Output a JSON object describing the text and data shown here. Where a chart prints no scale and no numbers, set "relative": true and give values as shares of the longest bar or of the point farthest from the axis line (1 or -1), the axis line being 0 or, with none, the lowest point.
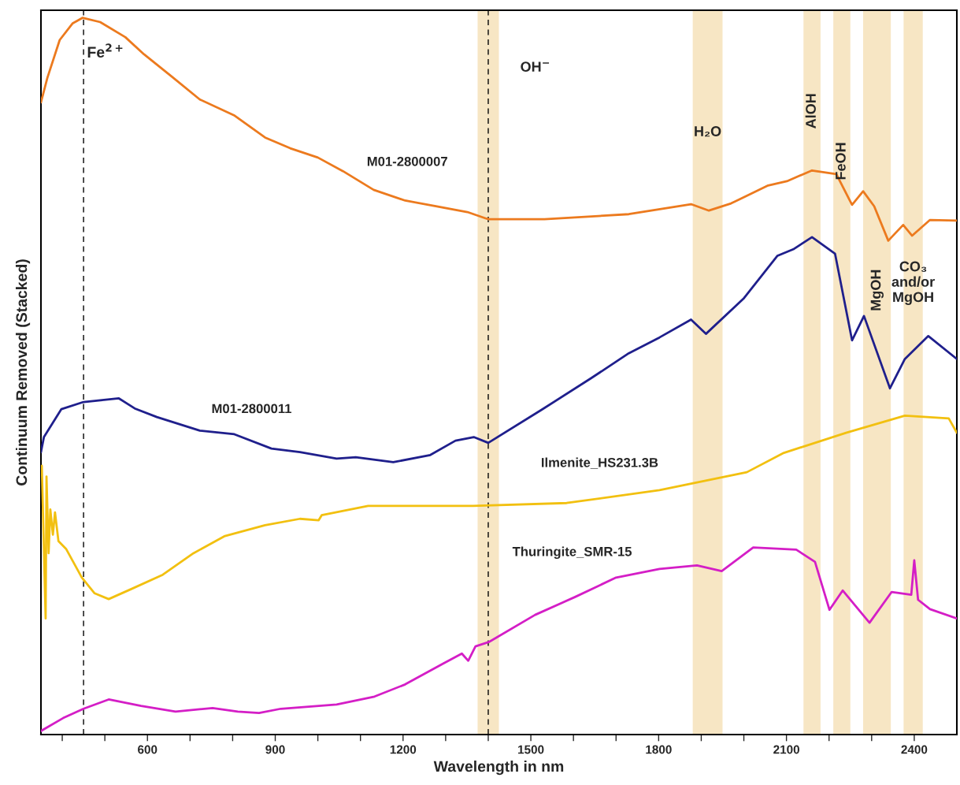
{
  "chart_data": {
    "type": "line",
    "relative": true,
    "xlabel": "Wavelength in nm",
    "ylabel": "Continuum Removed (Stacked)",
    "xlim": [
      350,
      2500
    ],
    "xticks": [
      {
        "value": 400,
        "label": null
      },
      {
        "value": 500,
        "label": null
      },
      600,
      {
        "value": 700,
        "label": null
      },
      {
        "value": 800,
        "label": null
      },
      900,
      {
        "value": 1000,
        "label": null
      },
      {
        "value": 1100,
        "label": null
      },
      1200,
      {
        "value": 1300,
        "label": null
      },
      {
        "value": 1400,
        "label": null
      },
      1500,
      {
        "value": 1600,
        "label": null
      },
      {
        "value": 1700,
        "label": null
      },
      1800,
      {
        "value": 1900,
        "label": null
      },
      {
        "value": 2000,
        "label": null
      },
      2100,
      {
        "value": 2200,
        "label": null
      },
      {
        "value": 2300,
        "label": null
      },
      2400
    ],
    "grid": false,
    "tick_labels": "x",
    "series": [
      {
        "name": "M01-2800007",
        "color": "#ec7a1e",
        "x": [
          350,
          365,
          394,
          424,
          448,
          489,
          548,
          592,
          657,
          723,
          803,
          876,
          935,
          1000,
          1059,
          1131,
          1205,
          1277,
          1351,
          1395,
          1401,
          1532,
          1730,
          1876,
          1918,
          1970,
          2057,
          2101,
          2160,
          2217,
          2254,
          2280,
          2306,
          2339,
          2374,
          2395,
          2437,
          2500
        ],
        "values": [
          0.882,
          0.916,
          0.969,
          0.992,
          1.0,
          0.994,
          0.973,
          0.949,
          0.918,
          0.886,
          0.864,
          0.833,
          0.818,
          0.805,
          0.786,
          0.76,
          0.745,
          0.737,
          0.729,
          0.72,
          0.719,
          0.719,
          0.726,
          0.74,
          0.731,
          0.741,
          0.766,
          0.772,
          0.787,
          0.782,
          0.739,
          0.758,
          0.737,
          0.689,
          0.711,
          0.696,
          0.718,
          0.717
        ]
      },
      {
        "name": "M01-2800011",
        "color": "#1f1f8c",
        "x": [
          350,
          357,
          398,
          450,
          533,
          570,
          622,
          723,
          804,
          891,
          958,
          1044,
          1089,
          1177,
          1264,
          1323,
          1366,
          1400,
          1525,
          1641,
          1730,
          1802,
          1876,
          1911,
          1999,
          2079,
          2116,
          2160,
          2214,
          2254,
          2282,
          2343,
          2378,
          2433,
          2500
        ],
        "values": [
          0.394,
          0.415,
          0.454,
          0.464,
          0.469,
          0.455,
          0.443,
          0.424,
          0.419,
          0.399,
          0.394,
          0.385,
          0.387,
          0.38,
          0.39,
          0.41,
          0.415,
          0.407,
          0.453,
          0.497,
          0.532,
          0.554,
          0.579,
          0.559,
          0.608,
          0.668,
          0.677,
          0.694,
          0.671,
          0.55,
          0.584,
          0.483,
          0.524,
          0.556,
          0.524
        ]
      },
      {
        "name": "Ilmenite_HS231.3B",
        "color": "#f2c010",
        "x": [
          352,
          361,
          363,
          368,
          372,
          378,
          383,
          391,
          409,
          446,
          476,
          509,
          562,
          636,
          708,
          782,
          876,
          958,
          1002,
          1009,
          1118,
          1364,
          1584,
          1802,
          2007,
          2094,
          2240,
          2378,
          2481,
          2500
        ],
        "values": [
          0.375,
          0.162,
          0.36,
          0.253,
          0.314,
          0.279,
          0.31,
          0.27,
          0.259,
          0.219,
          0.197,
          0.189,
          0.203,
          0.223,
          0.253,
          0.277,
          0.292,
          0.301,
          0.299,
          0.306,
          0.319,
          0.319,
          0.323,
          0.341,
          0.366,
          0.393,
          0.421,
          0.445,
          0.441,
          0.421
        ]
      },
      {
        "name": "Thuringite_SMR-15",
        "color": "#d41ec6",
        "x": [
          350,
          402,
          450,
          509,
          585,
          666,
          753,
          812,
          862,
          913,
          1044,
          1133,
          1205,
          1294,
          1338,
          1353,
          1370,
          1401,
          1510,
          1604,
          1700,
          1802,
          1890,
          1948,
          2022,
          2123,
          2167,
          2201,
          2232,
          2295,
          2347,
          2393,
          2400,
          2409,
          2437,
          2500
        ],
        "values": [
          0.005,
          0.023,
          0.036,
          0.049,
          0.04,
          0.032,
          0.037,
          0.032,
          0.03,
          0.036,
          0.042,
          0.053,
          0.07,
          0.099,
          0.113,
          0.103,
          0.123,
          0.129,
          0.167,
          0.192,
          0.219,
          0.231,
          0.236,
          0.228,
          0.261,
          0.258,
          0.241,
          0.174,
          0.201,
          0.156,
          0.199,
          0.195,
          0.243,
          0.188,
          0.175,
          0.162
        ]
      }
    ],
    "ref_lines": [
      {
        "axis": "x",
        "value": 450,
        "label": "Fe$^{2+}$",
        "color": "#000000",
        "line_style": "dashed"
      },
      {
        "axis": "x",
        "value": 1400,
        "color": "#000000",
        "line_style": "dashed"
      }
    ],
    "bands": [
      {
        "axis": "x",
        "from": 1375,
        "to": 1425,
        "label": "OH$^{−}$",
        "color": "#f7e6c4"
      },
      {
        "axis": "x",
        "from": 1880,
        "to": 1950,
        "label": "H₂O",
        "color": "#f7e6c4"
      },
      {
        "axis": "x",
        "from": 2140,
        "to": 2180,
        "label": "AlOH",
        "color": "#f7e6c4"
      },
      {
        "axis": "x",
        "from": 2210,
        "to": 2250,
        "label": "FeOH",
        "color": "#f7e6c4"
      },
      {
        "axis": "x",
        "from": 2280,
        "to": 2345,
        "label": "MgOH",
        "color": "#f7e6c4"
      },
      {
        "axis": "x",
        "from": 2375,
        "to": 2420,
        "label": "CO₃\nand/or\nMgOH",
        "color": "#f7e6c4"
      }
    ]
  }
}
